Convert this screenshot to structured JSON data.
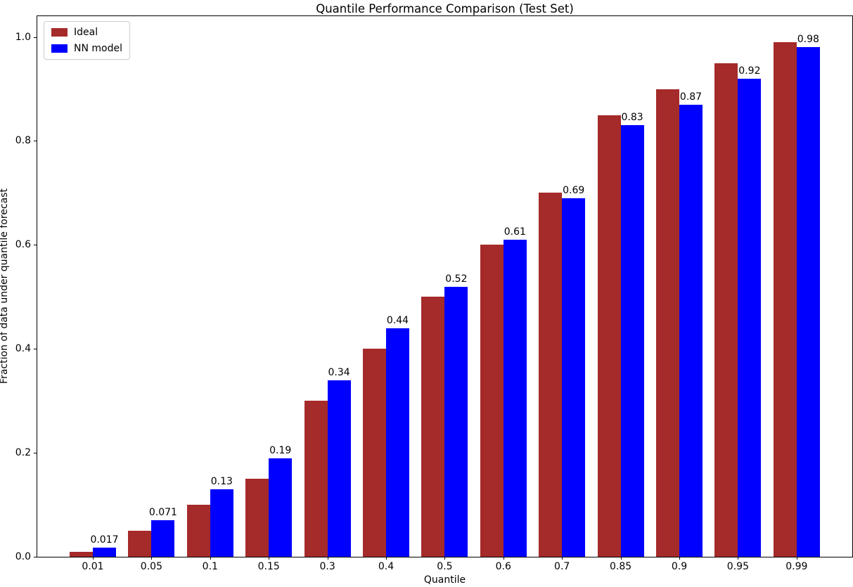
{
  "chart_data": {
    "type": "bar",
    "title": "Quantile Performance Comparison (Test Set)",
    "xlabel": "Quantile",
    "ylabel": "Fraction of data under quantile forecast",
    "categories": [
      "0.01",
      "0.05",
      "0.1",
      "0.15",
      "0.3",
      "0.4",
      "0.5",
      "0.6",
      "0.7",
      "0.85",
      "0.9",
      "0.95",
      "0.99"
    ],
    "series": [
      {
        "name": "Ideal",
        "color": "#A52A2A",
        "values": [
          0.01,
          0.05,
          0.1,
          0.15,
          0.3,
          0.4,
          0.5,
          0.6,
          0.7,
          0.85,
          0.9,
          0.95,
          0.99
        ]
      },
      {
        "name": "NN model",
        "color": "#0000FF",
        "values": [
          0.017,
          0.071,
          0.13,
          0.19,
          0.34,
          0.44,
          0.52,
          0.61,
          0.69,
          0.83,
          0.87,
          0.92,
          0.98
        ]
      }
    ],
    "bar_labels": [
      "0.017",
      "0.071",
      "0.13",
      "0.19",
      "0.34",
      "0.44",
      "0.52",
      "0.61",
      "0.69",
      "0.83",
      "0.87",
      "0.92",
      "0.98"
    ],
    "yticks": [
      "0.0",
      "0.2",
      "0.4",
      "0.6",
      "0.8",
      "1.0"
    ],
    "ylim": [
      0,
      1.04
    ],
    "legend_position": "upper-left",
    "grid": false
  }
}
